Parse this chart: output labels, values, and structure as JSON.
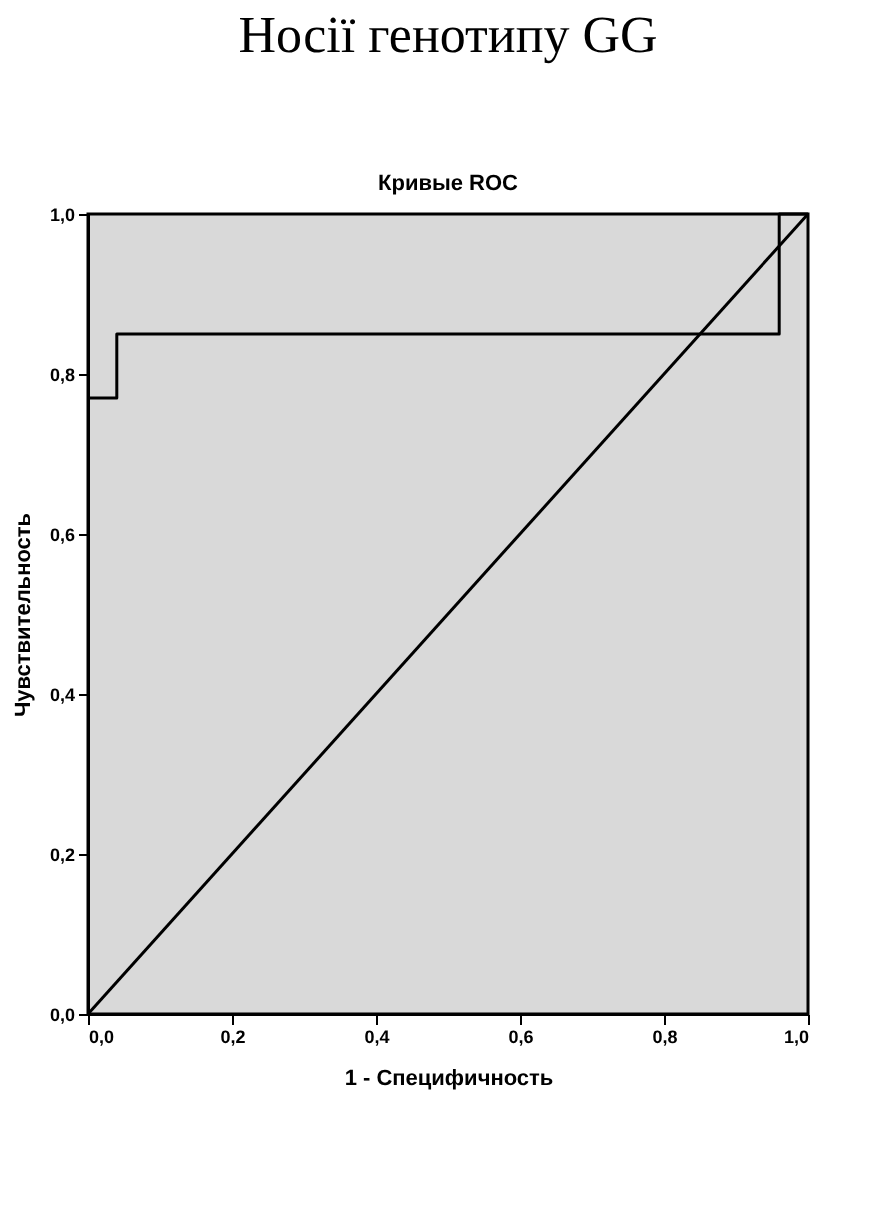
{
  "chart_data": {
    "type": "line",
    "title": "Носії генотипу GG",
    "subtitle": "Кривые ROC",
    "xlabel": "1 - Специфичность",
    "ylabel": "Чувствительность",
    "series": [
      {
        "color": "#000000",
        "x": [
          0,
          0.04,
          0.04,
          0.96,
          0.96,
          1
        ],
        "values": [
          0.77,
          0.77,
          0.85,
          0.85,
          1,
          1
        ]
      },
      {
        "color": "#000000",
        "x": [
          0,
          1
        ],
        "values": [
          0,
          1
        ]
      }
    ],
    "xlim": [
      0,
      1
    ],
    "ylim": [
      0,
      1
    ],
    "xticks": [
      {
        "value": 0,
        "label": "0,0"
      },
      {
        "value": 0.2,
        "label": "0,2"
      },
      {
        "value": 0.4,
        "label": "0,4"
      },
      {
        "value": 0.6,
        "label": "0,6"
      },
      {
        "value": 0.8,
        "label": "0,8"
      },
      {
        "value": 1,
        "label": "1,0"
      }
    ],
    "yticks": [
      {
        "value": 0,
        "label": "0,0"
      },
      {
        "value": 0.2,
        "label": "0,2"
      },
      {
        "value": 0.4,
        "label": "0,4"
      },
      {
        "value": 0.6,
        "label": "0,6"
      },
      {
        "value": 0.8,
        "label": "0,8"
      },
      {
        "value": 1,
        "label": "1,0"
      }
    ],
    "grid": false,
    "marker": "none",
    "line_style": "solid"
  }
}
